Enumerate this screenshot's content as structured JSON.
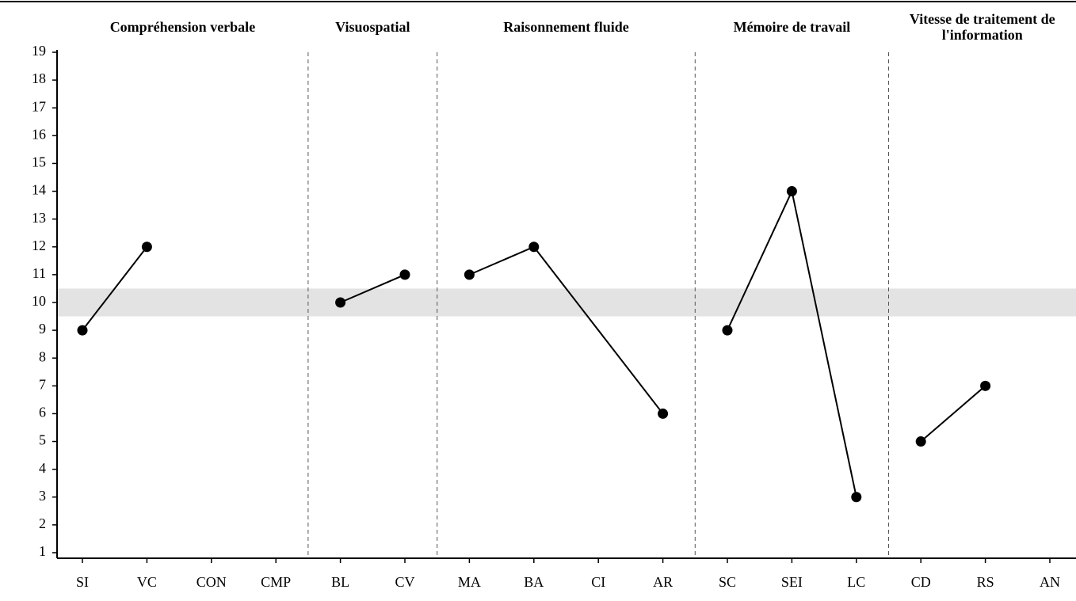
{
  "chart_data": {
    "type": "line",
    "ylim": [
      0.8,
      19
    ],
    "yticks": [
      1,
      2,
      3,
      4,
      5,
      6,
      7,
      8,
      9,
      10,
      11,
      12,
      13,
      14,
      15,
      16,
      17,
      18,
      19
    ],
    "average_band": [
      9.5,
      10.5
    ],
    "color": "#000000",
    "band_color": "#e3e3e3",
    "groups": [
      {
        "label": "Compréhension verbale",
        "categories": [
          "SI",
          "VC",
          "CON",
          "CMP"
        ],
        "values": [
          9,
          12,
          null,
          null
        ]
      },
      {
        "label": "Visuospatial",
        "categories": [
          "BL",
          "CV"
        ],
        "values": [
          10,
          11
        ]
      },
      {
        "label": "Raisonnement fluide",
        "categories": [
          "MA",
          "BA",
          "CI",
          "AR"
        ],
        "values": [
          11,
          12,
          null,
          6
        ]
      },
      {
        "label": "Mémoire de travail",
        "categories": [
          "SC",
          "SEI",
          "LC"
        ],
        "values": [
          9,
          14,
          3
        ]
      },
      {
        "label": "Vitesse de traitement de l'information",
        "categories": [
          "CD",
          "RS",
          "AN"
        ],
        "values": [
          5,
          7,
          null
        ]
      }
    ]
  }
}
